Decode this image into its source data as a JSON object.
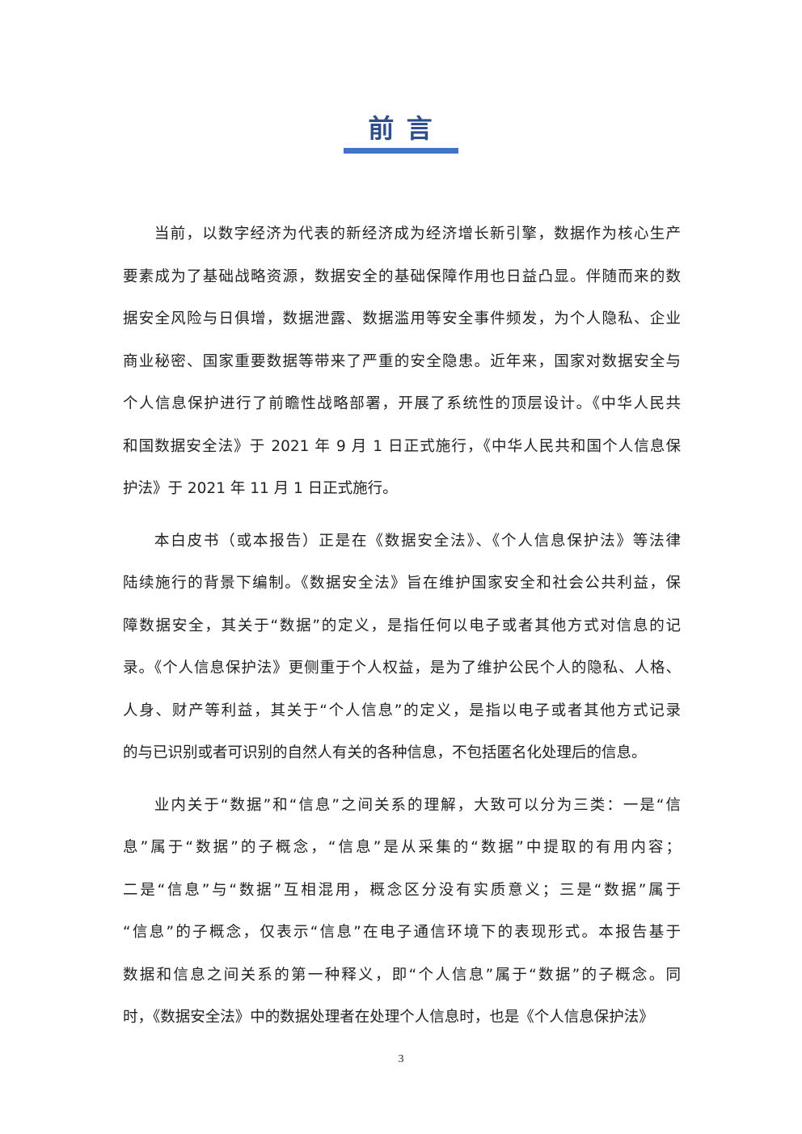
{
  "title": "前 言",
  "paragraphs": [
    [
      "当前，以数字经济为代表的新经济成为经济增长新引擎，数据作为核心生产",
      "要素成为了基础战略资源，数据安全的基础保障作用也日益凸显。伴随而来的数",
      "据安全风险与日俱增，数据泄露、数据滥用等安全事件频发，为个人隐私、企业",
      "商业秘密、国家重要数据等带来了严重的安全隐患。近年来，国家对数据安全与",
      "个人信息保护进行了前瞻性战略部署，开展了系统性的顶层设计。《中华人民共",
      "和国数据安全法》于 2021 年 9 月 1 日正式施行，《中华人民共和国个人信息保",
      "护法》于 2021 年 11 月 1 日正式施行。"
    ],
    [
      "本白皮书（或本报告）正是在《数据安全法》、《个人信息保护法》等法律",
      "陆续施行的背景下编制。《数据安全法》旨在维护国家安全和社会公共利益，保",
      "障数据安全，其关于“数据”的定义，是指任何以电子或者其他方式对信息的记",
      "录。《个人信息保护法》更侧重于个人权益，是为了维护公民个人的隐私、人格、",
      "人身、财产等利益，其关于“个人信息”的定义，是指以电子或者其他方式记录",
      "的与已识别或者可识别的自然人有关的各种信息，不包括匿名化处理后的信息。"
    ],
    [
      "业内关于“数据”和“信息”之间关系的理解，大致可以分为三类：一是“信",
      "息”属于“数据”的子概念，“信息”是从采集的“数据”中提取的有用内容；",
      "二是“信息”与“数据”互相混用，概念区分没有实质意义；三是“数据”属于",
      "“信息”的子概念，仅表示“信息”在电子通信环境下的表现形式。本报告基于",
      "数据和信息之间关系的第一种释义，即“个人信息”属于“数据”的子概念。同",
      "时，《数据安全法》中的数据处理者在处理个人信息时，也是《个人信息保护法》"
    ]
  ],
  "page_number": "3"
}
